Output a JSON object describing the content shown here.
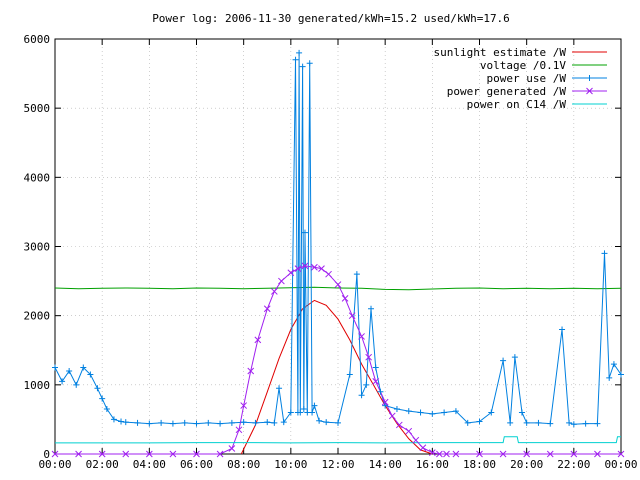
{
  "chart_data": {
    "type": "line",
    "title": "Power log: 2006-11-30 generated/kWh=15.2 used/kWh=17.6",
    "xlabel": "",
    "ylabel": "",
    "xlim": [
      0,
      24
    ],
    "ylim": [
      0,
      6000
    ],
    "x_ticks": [
      "00:00",
      "02:00",
      "04:00",
      "06:00",
      "08:00",
      "10:00",
      "12:00",
      "14:00",
      "16:00",
      "18:00",
      "20:00",
      "22:00",
      "00:00"
    ],
    "y_ticks": [
      0,
      1000,
      2000,
      3000,
      4000,
      5000,
      6000
    ],
    "grid": true,
    "legend_position": "top-right",
    "series": [
      {
        "name": "sunlight estimate /W",
        "color": "#e00000",
        "marker": "none",
        "x": [
          7.9,
          8.5,
          9.0,
          9.5,
          10.0,
          10.5,
          11.0,
          11.5,
          12.0,
          12.5,
          13.0,
          13.5,
          14.0,
          14.5,
          15.0,
          15.5,
          16.0
        ],
        "values": [
          0,
          420,
          900,
          1380,
          1800,
          2100,
          2220,
          2150,
          1950,
          1650,
          1300,
          1000,
          700,
          440,
          220,
          60,
          0
        ]
      },
      {
        "name": "voltage /0.1V",
        "color": "#00a000",
        "marker": "none",
        "x": [
          0,
          1,
          2,
          3,
          4,
          5,
          6,
          7,
          8,
          9,
          10,
          11,
          12,
          13,
          14,
          15,
          16,
          17,
          18,
          19,
          20,
          21,
          22,
          23,
          24
        ],
        "values": [
          2400,
          2390,
          2395,
          2400,
          2395,
          2390,
          2400,
          2395,
          2390,
          2395,
          2405,
          2410,
          2400,
          2395,
          2380,
          2375,
          2385,
          2395,
          2400,
          2390,
          2395,
          2390,
          2395,
          2390,
          2395
        ]
      },
      {
        "name": "power use /W",
        "color": "#0080e0",
        "marker": "+",
        "x": [
          0,
          0.3,
          0.6,
          0.9,
          1.2,
          1.5,
          1.8,
          2.0,
          2.2,
          2.5,
          2.8,
          3.0,
          3.5,
          4.0,
          4.5,
          5.0,
          5.5,
          6.0,
          6.5,
          7.0,
          7.5,
          8.0,
          8.5,
          9.0,
          9.3,
          9.5,
          9.7,
          10.0,
          10.2,
          10.3,
          10.35,
          10.4,
          10.5,
          10.55,
          10.6,
          10.7,
          10.8,
          10.9,
          11.0,
          11.2,
          11.5,
          12.0,
          12.5,
          12.8,
          13.0,
          13.2,
          13.4,
          13.6,
          13.8,
          14.0,
          14.5,
          15.0,
          15.5,
          16.0,
          16.5,
          17.0,
          17.5,
          18.0,
          18.5,
          19.0,
          19.3,
          19.5,
          19.8,
          20.0,
          20.5,
          21.0,
          21.5,
          21.8,
          22.0,
          22.5,
          23.0,
          23.3,
          23.5,
          23.7,
          24.0
        ],
        "values": [
          1250,
          1050,
          1200,
          1000,
          1250,
          1150,
          950,
          800,
          650,
          500,
          470,
          460,
          450,
          440,
          450,
          440,
          450,
          440,
          450,
          440,
          450,
          460,
          450,
          460,
          450,
          950,
          460,
          600,
          5700,
          600,
          5800,
          600,
          5600,
          650,
          3200,
          600,
          5650,
          600,
          700,
          480,
          460,
          450,
          1150,
          2600,
          850,
          1000,
          2100,
          1250,
          900,
          700,
          650,
          620,
          600,
          580,
          600,
          620,
          450,
          470,
          600,
          1350,
          450,
          1400,
          600,
          450,
          450,
          440,
          1800,
          450,
          430,
          440,
          440,
          2900,
          1100,
          1300,
          1150
        ]
      },
      {
        "name": "power generated /W",
        "color": "#a020f0",
        "marker": "x",
        "x": [
          0,
          1,
          2,
          3,
          4,
          5,
          6,
          7.0,
          7.5,
          7.8,
          8.0,
          8.3,
          8.6,
          9.0,
          9.3,
          9.6,
          10.0,
          10.3,
          10.6,
          11.0,
          11.3,
          11.6,
          12.0,
          12.3,
          12.6,
          13.0,
          13.3,
          13.6,
          14.0,
          14.3,
          14.6,
          15.0,
          15.3,
          15.6,
          16.0,
          16.3,
          16.6,
          17.0,
          18,
          19,
          20,
          21,
          22,
          23,
          24
        ],
        "values": [
          0,
          0,
          0,
          0,
          0,
          0,
          0,
          0,
          80,
          350,
          700,
          1200,
          1650,
          2100,
          2350,
          2500,
          2620,
          2680,
          2720,
          2700,
          2680,
          2600,
          2450,
          2250,
          2000,
          1700,
          1400,
          1050,
          750,
          550,
          420,
          330,
          200,
          90,
          20,
          0,
          0,
          0,
          0,
          0,
          0,
          0,
          0,
          0,
          0
        ]
      },
      {
        "name": "power on C14 /W",
        "color": "#00d0d0",
        "marker": "none",
        "x": [
          0,
          2,
          4,
          6,
          8,
          10,
          12,
          14,
          16,
          18,
          19.0,
          19.05,
          19.6,
          19.65,
          21,
          22,
          23.8,
          23.85,
          24
        ],
        "values": [
          160,
          160,
          160,
          165,
          165,
          160,
          165,
          160,
          165,
          165,
          165,
          250,
          250,
          165,
          165,
          165,
          165,
          250,
          250
        ]
      }
    ]
  }
}
